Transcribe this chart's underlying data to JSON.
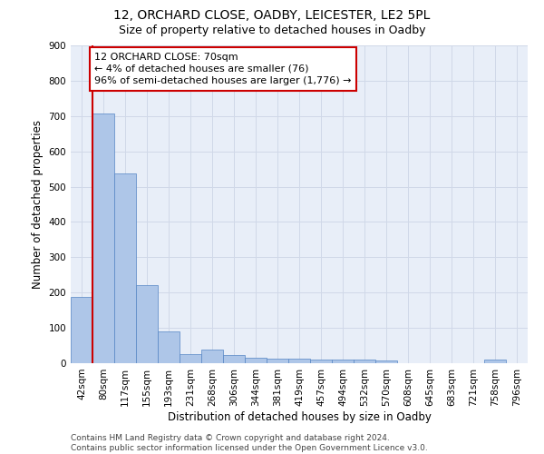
{
  "title": "12, ORCHARD CLOSE, OADBY, LEICESTER, LE2 5PL",
  "subtitle": "Size of property relative to detached houses in Oadby",
  "xlabel": "Distribution of detached houses by size in Oadby",
  "ylabel": "Number of detached properties",
  "categories": [
    "42sqm",
    "80sqm",
    "117sqm",
    "155sqm",
    "193sqm",
    "231sqm",
    "268sqm",
    "306sqm",
    "344sqm",
    "381sqm",
    "419sqm",
    "457sqm",
    "494sqm",
    "532sqm",
    "570sqm",
    "608sqm",
    "645sqm",
    "683sqm",
    "721sqm",
    "758sqm",
    "796sqm"
  ],
  "values": [
    188,
    706,
    538,
    222,
    91,
    27,
    38,
    24,
    15,
    13,
    13,
    11,
    10,
    10,
    9,
    0,
    0,
    0,
    0,
    10,
    0
  ],
  "bar_color": "#aec6e8",
  "bar_edge_color": "#5585c5",
  "annotation_text": "12 ORCHARD CLOSE: 70sqm\n← 4% of detached houses are smaller (76)\n96% of semi-detached houses are larger (1,776) →",
  "annotation_box_color": "#ffffff",
  "annotation_box_edge_color": "#cc0000",
  "vline_color": "#cc0000",
  "ylim": [
    0,
    900
  ],
  "yticks": [
    0,
    100,
    200,
    300,
    400,
    500,
    600,
    700,
    800,
    900
  ],
  "grid_color": "#d0d8e8",
  "bg_color": "#e8eef8",
  "footer": "Contains HM Land Registry data © Crown copyright and database right 2024.\nContains public sector information licensed under the Open Government Licence v3.0.",
  "title_fontsize": 10,
  "subtitle_fontsize": 9,
  "xlabel_fontsize": 8.5,
  "ylabel_fontsize": 8.5,
  "tick_fontsize": 7.5,
  "footer_fontsize": 6.5,
  "annotation_fontsize": 8,
  "vline_x": 0.5
}
